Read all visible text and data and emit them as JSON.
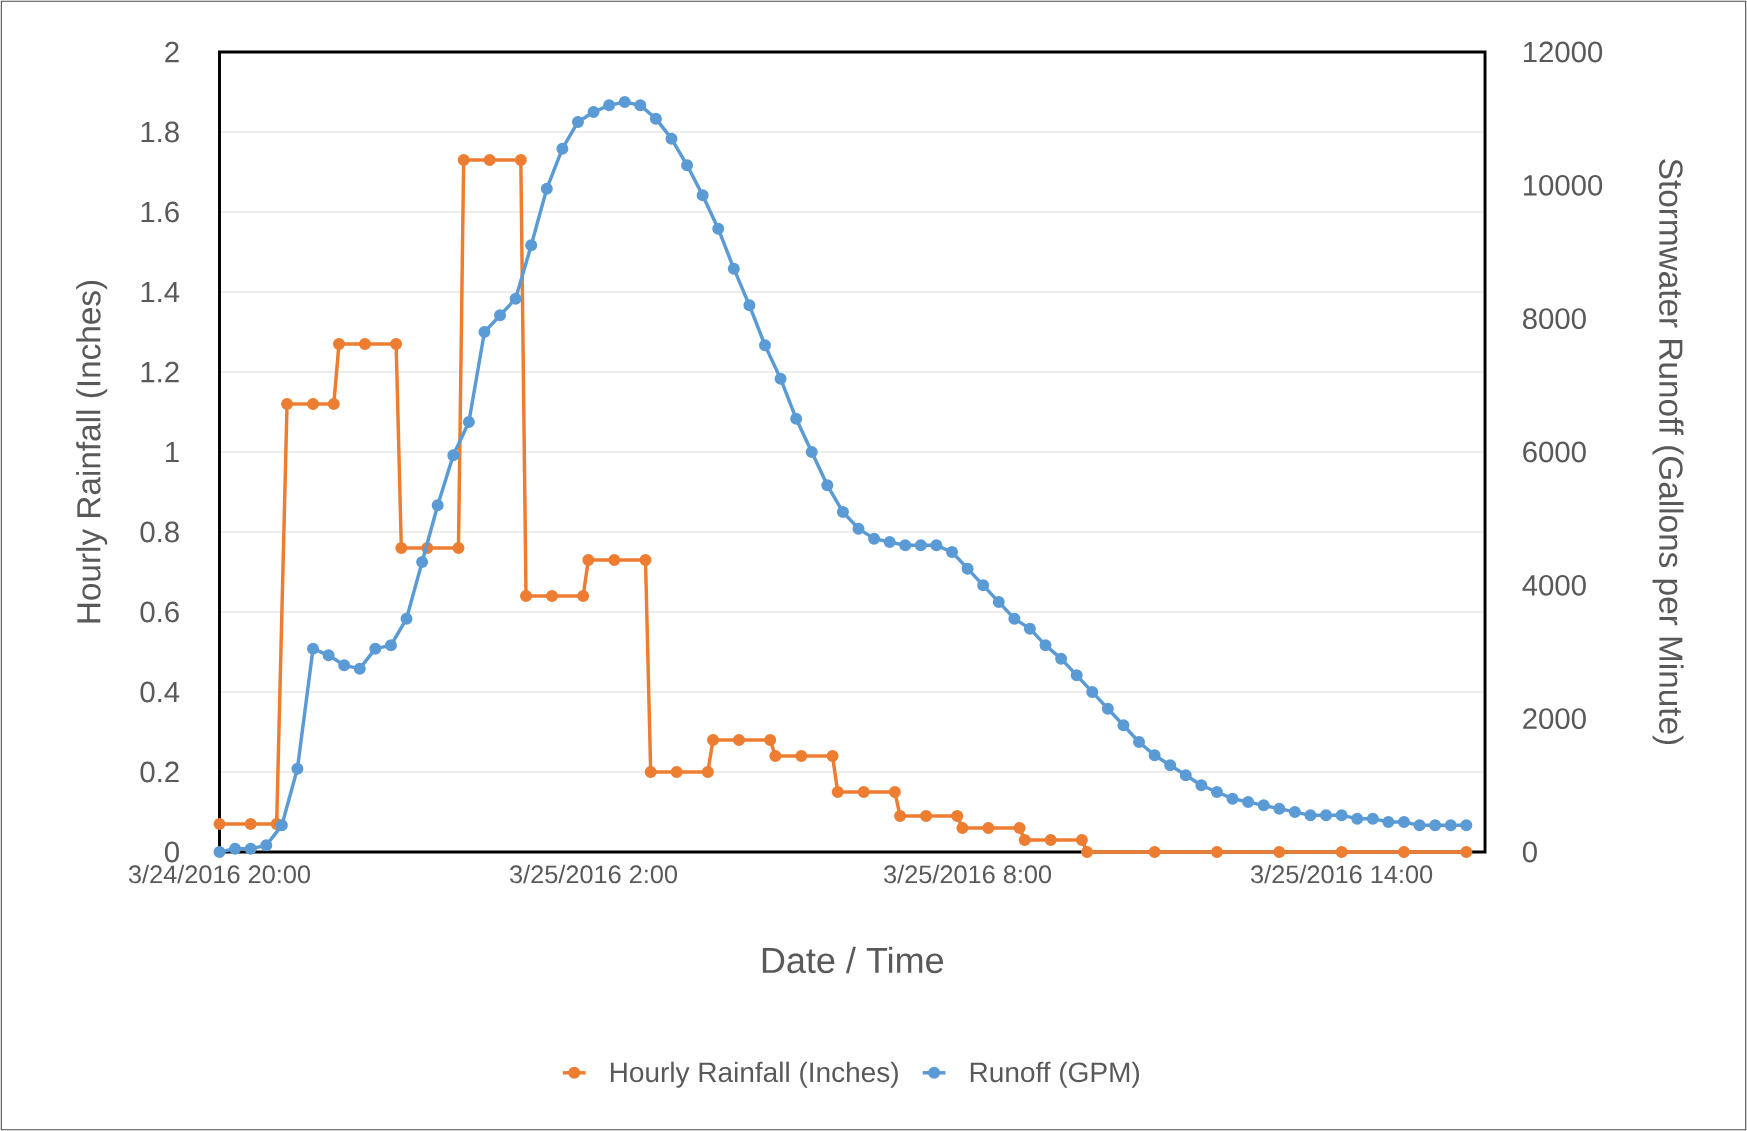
{
  "chart_data": {
    "type": "line",
    "xlabel": "Date / Time",
    "ylabel": "Hourly Rainfall (Inches)",
    "y2label": "Stormwater Runoff (Gallons per Minute)",
    "xlim": [
      "2016-03-24T20:00",
      "2016-03-25T16:18"
    ],
    "xticks": [
      {
        "value": "2016-03-24T20:00",
        "label": "3/24/2016 20:00"
      },
      {
        "value": "2016-03-25T02:00",
        "label": "3/25/2016 2:00"
      },
      {
        "value": "2016-03-25T08:00",
        "label": "3/25/2016 8:00"
      },
      {
        "value": "2016-03-25T14:00",
        "label": "3/25/2016 14:00"
      }
    ],
    "ylim": [
      0,
      2
    ],
    "yticks": [
      0,
      0.2,
      0.4,
      0.6,
      0.8,
      1,
      1.2,
      1.4,
      1.6,
      1.8,
      2
    ],
    "y2lim": [
      0,
      12000
    ],
    "y2ticks": [
      0,
      2000,
      4000,
      6000,
      8000,
      10000,
      12000
    ],
    "grid": "y",
    "legend": "bottom",
    "marker": "circle",
    "series": [
      {
        "name": "Hourly Rainfall (Inches)",
        "color": "#ed7d31",
        "x": [
          "2016-03-24T20:00",
          "2016-03-24T20:30",
          "2016-03-24T20:55",
          "2016-03-24T21:05",
          "2016-03-24T21:30",
          "2016-03-24T21:50",
          "2016-03-24T21:55",
          "2016-03-24T22:20",
          "2016-03-24T22:50",
          "2016-03-24T22:55",
          "2016-03-24T23:20",
          "2016-03-24T23:50",
          "2016-03-24T23:55",
          "2016-03-25T00:20",
          "2016-03-25T00:50",
          "2016-03-25T00:55",
          "2016-03-25T01:20",
          "2016-03-25T01:50",
          "2016-03-25T01:55",
          "2016-03-25T02:20",
          "2016-03-25T02:50",
          "2016-03-25T02:55",
          "2016-03-25T03:20",
          "2016-03-25T03:50",
          "2016-03-25T03:55",
          "2016-03-25T04:20",
          "2016-03-25T04:50",
          "2016-03-25T04:55",
          "2016-03-25T05:20",
          "2016-03-25T05:50",
          "2016-03-25T05:55",
          "2016-03-25T06:20",
          "2016-03-25T06:50",
          "2016-03-25T06:55",
          "2016-03-25T07:20",
          "2016-03-25T07:50",
          "2016-03-25T07:55",
          "2016-03-25T08:20",
          "2016-03-25T08:50",
          "2016-03-25T08:55",
          "2016-03-25T09:20",
          "2016-03-25T09:50",
          "2016-03-25T09:55",
          "2016-03-25T11:00",
          "2016-03-25T12:00",
          "2016-03-25T13:00",
          "2016-03-25T14:00",
          "2016-03-25T15:00",
          "2016-03-25T16:00"
        ],
        "values": [
          0.07,
          0.07,
          0.07,
          1.12,
          1.12,
          1.12,
          1.27,
          1.27,
          1.27,
          0.76,
          0.76,
          0.76,
          1.73,
          1.73,
          1.73,
          0.64,
          0.64,
          0.64,
          0.73,
          0.73,
          0.73,
          0.2,
          0.2,
          0.2,
          0.28,
          0.28,
          0.28,
          0.24,
          0.24,
          0.24,
          0.15,
          0.15,
          0.15,
          0.09,
          0.09,
          0.09,
          0.06,
          0.06,
          0.06,
          0.03,
          0.03,
          0.03,
          0,
          0,
          0,
          0,
          0,
          0,
          0
        ]
      },
      {
        "name": "Runoff (GPM)",
        "color": "#5b9bd5",
        "axis": "y2",
        "x": [
          "2016-03-24T20:00",
          "2016-03-24T20:15",
          "2016-03-24T20:30",
          "2016-03-24T20:45",
          "2016-03-24T21:00",
          "2016-03-24T21:15",
          "2016-03-24T21:30",
          "2016-03-24T21:45",
          "2016-03-24T22:00",
          "2016-03-24T22:15",
          "2016-03-24T22:30",
          "2016-03-24T22:45",
          "2016-03-24T23:00",
          "2016-03-24T23:15",
          "2016-03-24T23:30",
          "2016-03-24T23:45",
          "2016-03-25T00:00",
          "2016-03-25T00:15",
          "2016-03-25T00:30",
          "2016-03-25T00:45",
          "2016-03-25T01:00",
          "2016-03-25T01:15",
          "2016-03-25T01:30",
          "2016-03-25T01:45",
          "2016-03-25T02:00",
          "2016-03-25T02:15",
          "2016-03-25T02:30",
          "2016-03-25T02:45",
          "2016-03-25T03:00",
          "2016-03-25T03:15",
          "2016-03-25T03:30",
          "2016-03-25T03:45",
          "2016-03-25T04:00",
          "2016-03-25T04:15",
          "2016-03-25T04:30",
          "2016-03-25T04:45",
          "2016-03-25T05:00",
          "2016-03-25T05:15",
          "2016-03-25T05:30",
          "2016-03-25T05:45",
          "2016-03-25T06:00",
          "2016-03-25T06:15",
          "2016-03-25T06:30",
          "2016-03-25T06:45",
          "2016-03-25T07:00",
          "2016-03-25T07:15",
          "2016-03-25T07:30",
          "2016-03-25T07:45",
          "2016-03-25T08:00",
          "2016-03-25T08:15",
          "2016-03-25T08:30",
          "2016-03-25T08:45",
          "2016-03-25T09:00",
          "2016-03-25T09:15",
          "2016-03-25T09:30",
          "2016-03-25T09:45",
          "2016-03-25T10:00",
          "2016-03-25T10:15",
          "2016-03-25T10:30",
          "2016-03-25T10:45",
          "2016-03-25T11:00",
          "2016-03-25T11:15",
          "2016-03-25T11:30",
          "2016-03-25T11:45",
          "2016-03-25T12:00",
          "2016-03-25T12:15",
          "2016-03-25T12:30",
          "2016-03-25T12:45",
          "2016-03-25T13:00",
          "2016-03-25T13:15",
          "2016-03-25T13:30",
          "2016-03-25T13:45",
          "2016-03-25T14:00",
          "2016-03-25T14:15",
          "2016-03-25T14:30",
          "2016-03-25T14:45",
          "2016-03-25T15:00",
          "2016-03-25T15:15",
          "2016-03-25T15:30",
          "2016-03-25T15:45",
          "2016-03-25T16:00"
        ],
        "values": [
          0,
          50,
          50,
          100,
          400,
          1250,
          3050,
          2950,
          2800,
          2750,
          3050,
          3100,
          3500,
          4350,
          5200,
          5950,
          6450,
          7800,
          8050,
          8300,
          9100,
          9950,
          10550,
          10950,
          11100,
          11200,
          11250,
          11200,
          11000,
          10700,
          10300,
          9850,
          9350,
          8750,
          8200,
          7600,
          7100,
          6500,
          6000,
          5500,
          5100,
          4850,
          4700,
          4650,
          4600,
          4600,
          4600,
          4500,
          4250,
          4000,
          3750,
          3500,
          3350,
          3100,
          2900,
          2650,
          2400,
          2150,
          1900,
          1650,
          1450,
          1300,
          1150,
          1000,
          900,
          800,
          750,
          700,
          650,
          600,
          550,
          550,
          550,
          500,
          500,
          450,
          450,
          400,
          400,
          400,
          400
        ]
      }
    ]
  }
}
